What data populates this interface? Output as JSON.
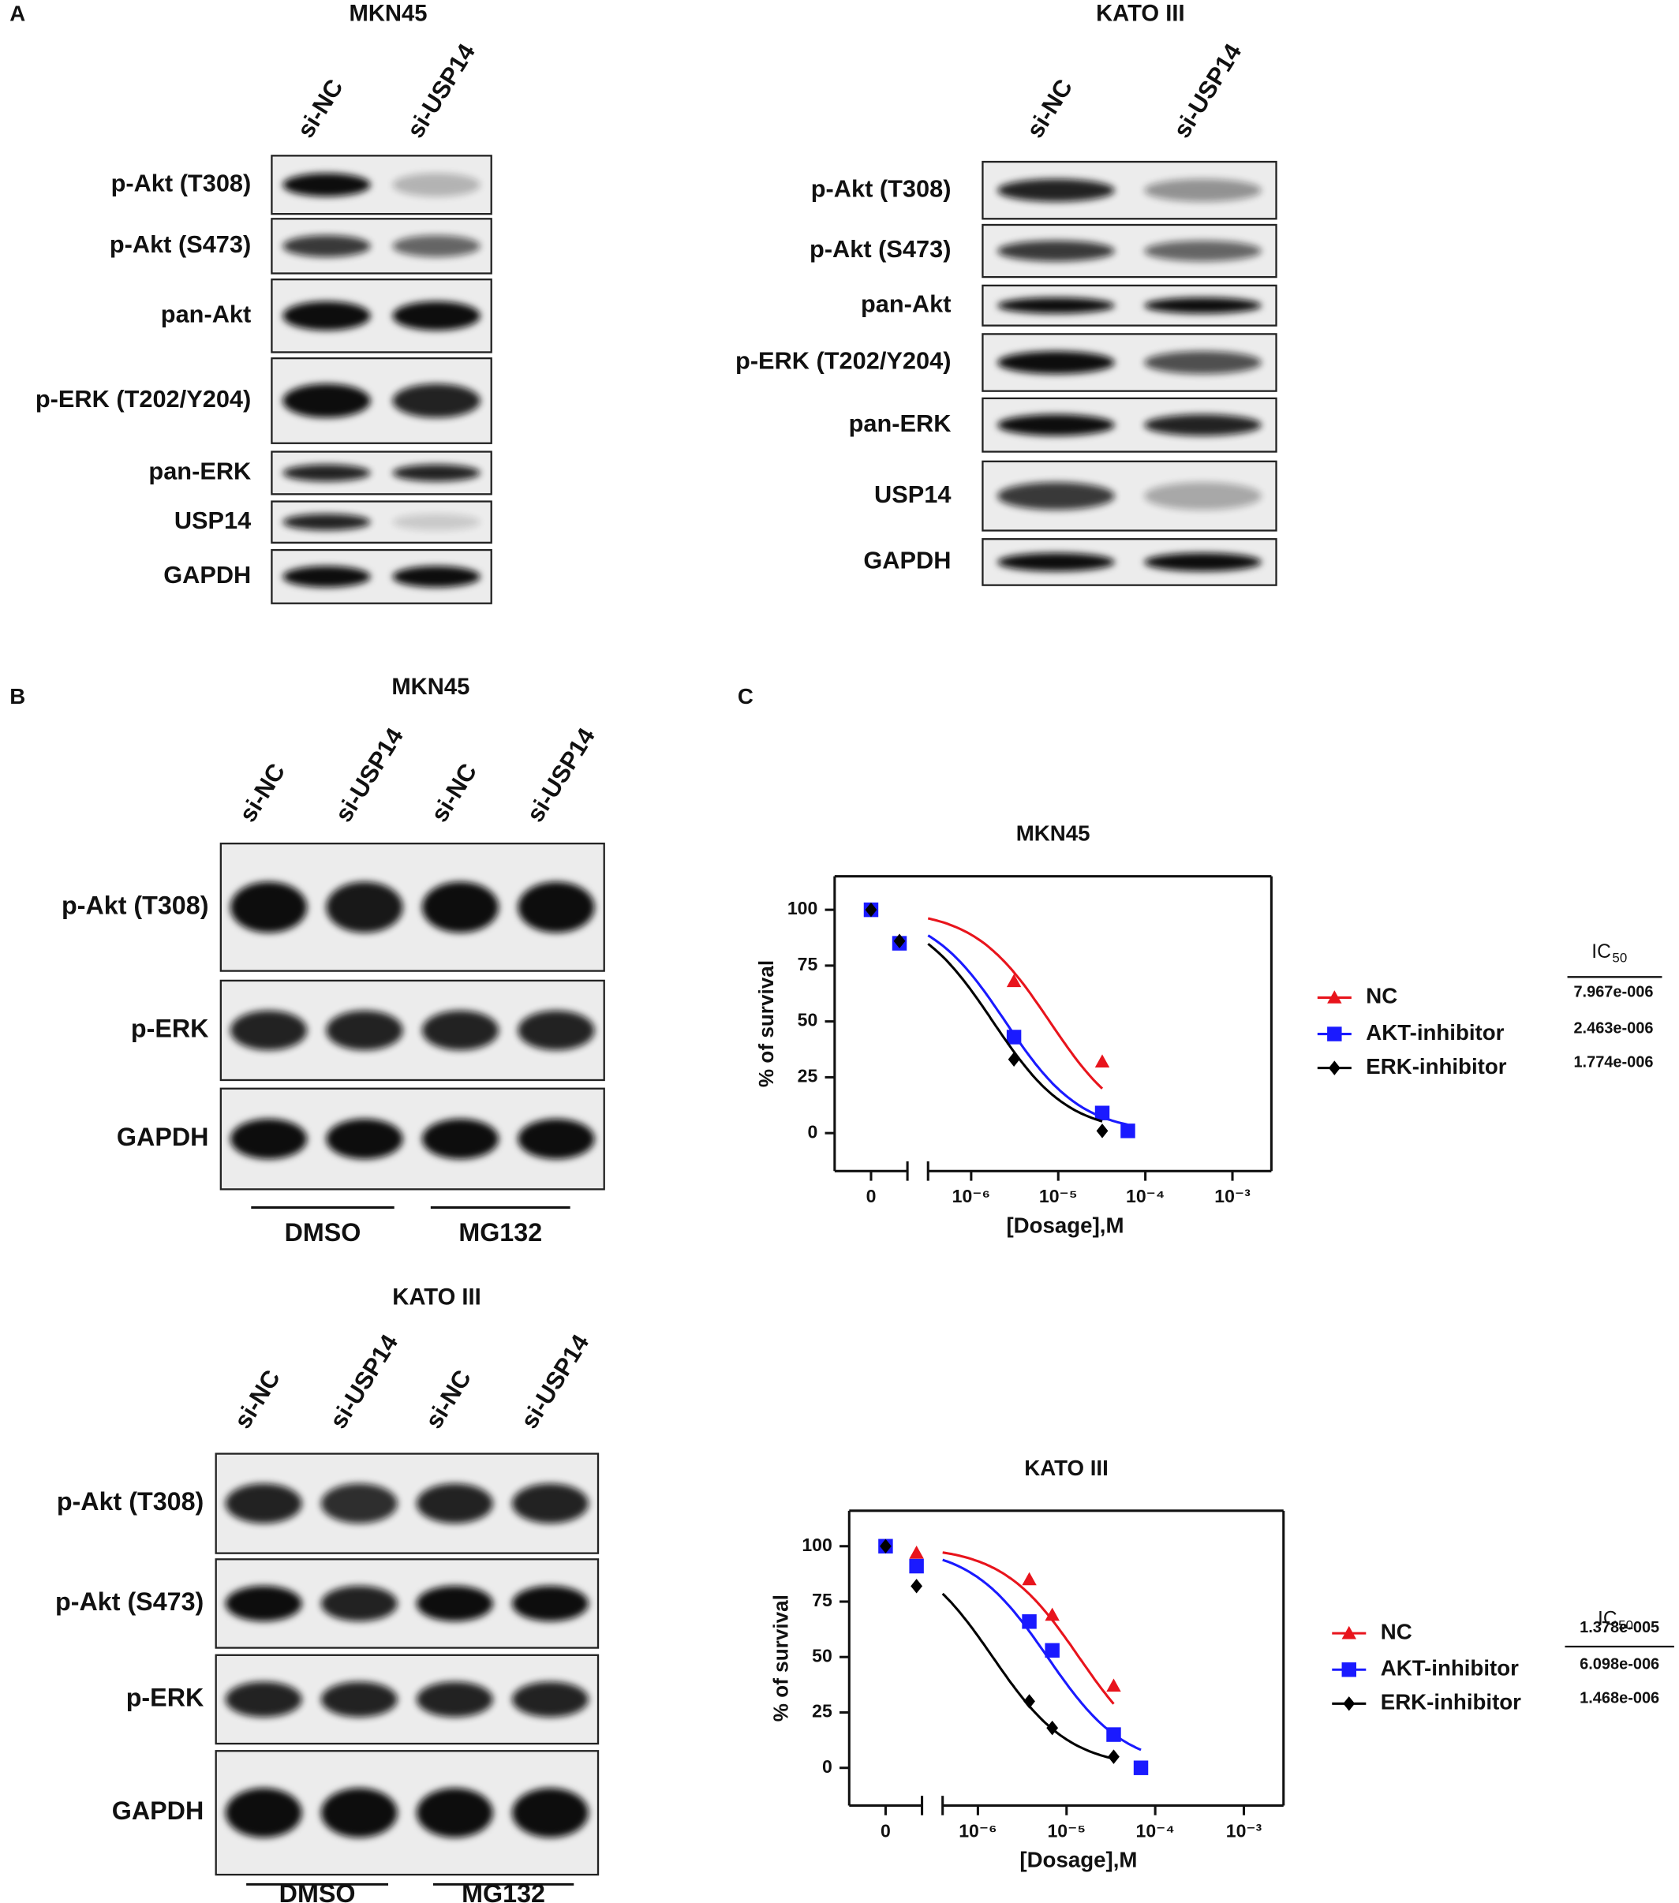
{
  "panel_labels": {
    "a": "A",
    "b": "B",
    "c": "C"
  },
  "blots": [
    {
      "title": "MKN45",
      "lanes": [
        "si-NC",
        "si-USP14"
      ],
      "rows": [
        "p-Akt (T308)",
        "p-Akt (S473)",
        "pan-Akt",
        "p-ERK (T202/Y204)",
        "pan-ERK",
        "USP14",
        "GAPDH"
      ]
    },
    {
      "title": "KATO III",
      "lanes": [
        "si-NC",
        "si-USP14"
      ],
      "rows": [
        "p-Akt (T308)",
        "p-Akt (S473)",
        "pan-Akt",
        "p-ERK (T202/Y204)",
        "pan-ERK",
        "USP14",
        "GAPDH"
      ]
    },
    {
      "title": "MKN45",
      "lanes": [
        "si-NC",
        "si-USP14",
        "si-NC",
        "si-USP14"
      ],
      "rows": [
        "p-Akt (T308)",
        "p-ERK",
        "GAPDH"
      ],
      "treatments": [
        "DMSO",
        "MG132"
      ]
    },
    {
      "title": "KATO III",
      "lanes": [
        "si-NC",
        "si-USP14",
        "si-NC",
        "si-USP14"
      ],
      "rows": [
        "p-Akt (T308)",
        "p-Akt (S473)",
        "p-ERK",
        "GAPDH"
      ],
      "treatments": [
        "DMSO",
        "MG132"
      ]
    }
  ],
  "chart_data": [
    {
      "type": "line",
      "title": "MKN45",
      "xlabel": "[Dosage],M",
      "ylabel": "% of survival",
      "log_x": true,
      "x_break": 3.2e-07,
      "x": [
        0,
        2.5e-07,
        3.1e-06,
        3.2e-05,
        6.3e-05
      ],
      "xlim": [
        0,
        0.0028
      ],
      "xticks": [
        0,
        {
          "value": 1e-06,
          "label": "10⁻⁶"
        },
        {
          "value": 1e-05,
          "label": "10⁻⁵"
        },
        {
          "value": 0.0001,
          "label": "10⁻⁴"
        },
        {
          "value": 0.001,
          "label": "10⁻³"
        }
      ],
      "ylim": [
        -17,
        115
      ],
      "yticks": [
        0,
        25,
        50,
        75,
        100
      ],
      "ic50_title": "IC",
      "ic50_title_sub": "50",
      "series": [
        {
          "name": "NC",
          "color": "#e8141c",
          "marker": "triangle",
          "values": [
            100,
            86,
            68,
            32,
            null
          ],
          "ic50": 7.967e-06,
          "ic50_label": "7.967e-006"
        },
        {
          "name": "AKT-inhibitor",
          "color": "#1a1aff",
          "marker": "square",
          "values": [
            100,
            85,
            43,
            9,
            1
          ],
          "ic50": 2.463e-06,
          "ic50_label": "2.463e-006"
        },
        {
          "name": "ERK-inhibitor",
          "color": "#000000",
          "marker": "diamond",
          "values": [
            100,
            86,
            33,
            1,
            null
          ],
          "ic50": 1.774e-06,
          "ic50_label": "1.774e-006"
        }
      ]
    },
    {
      "type": "line",
      "title": "KATO III",
      "xlabel": "[Dosage],M",
      "ylabel": "% of survival",
      "log_x": true,
      "x_break": 4e-07,
      "x": [
        0,
        3.4e-07,
        3.8e-06,
        6.9e-06,
        3.4e-05,
        6.9e-05
      ],
      "xlim": [
        0,
        0.0028
      ],
      "xticks": [
        0,
        {
          "value": 1e-06,
          "label": "10⁻⁶"
        },
        {
          "value": 1e-05,
          "label": "10⁻⁵"
        },
        {
          "value": 0.0001,
          "label": "10⁻⁴"
        },
        {
          "value": 0.001,
          "label": "10⁻³"
        }
      ],
      "ylim": [
        -17,
        116
      ],
      "yticks": [
        0,
        25,
        50,
        75,
        100
      ],
      "ic50_title": "IC",
      "ic50_title_sub": "50",
      "series": [
        {
          "name": "NC",
          "color": "#e8141c",
          "marker": "triangle",
          "values": [
            100,
            97,
            85,
            69,
            37,
            null
          ],
          "ic50": 1.378e-05,
          "ic50_label": "1.378e-005"
        },
        {
          "name": "AKT-inhibitor",
          "color": "#1a1aff",
          "marker": "square",
          "values": [
            100,
            91,
            66,
            53,
            15,
            0
          ],
          "ic50": 6.098e-06,
          "ic50_label": "6.098e-006"
        },
        {
          "name": "ERK-inhibitor",
          "color": "#000000",
          "marker": "diamond",
          "values": [
            100,
            82,
            30,
            18,
            5,
            null
          ],
          "ic50": 1.468e-06,
          "ic50_label": "1.468e-006"
        }
      ]
    }
  ]
}
